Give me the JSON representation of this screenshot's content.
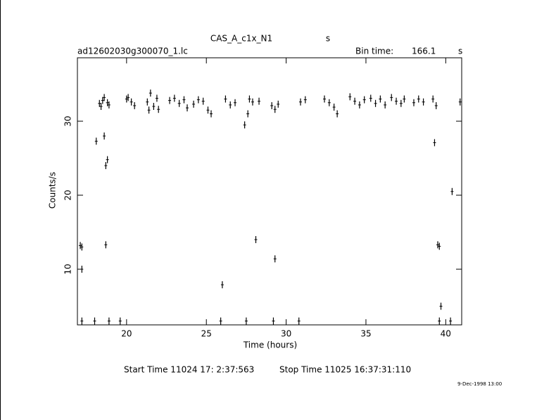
{
  "chart_data": {
    "type": "scatter",
    "title": "CAS_A_c1x_N1",
    "title_suffix": "s",
    "subtitle": "ad12602030g300070_1.lc",
    "bin_time_label": "Bin time:",
    "bin_time": "166.1",
    "bin_time_unit": "s",
    "xlabel": "Time (hours)",
    "ylabel": "Counts/s",
    "start_time": "Start Time 11024 17: 2:37:563",
    "stop_time": "Stop Time 11025 16:37:31:110",
    "date": "9-Dec-1998 13:00",
    "xlim": [
      16.92,
      41.0
    ],
    "ylim": [
      2.48,
      38.57
    ],
    "xticks": [
      20,
      25,
      30,
      35,
      40
    ],
    "yticks": [
      10,
      20,
      30
    ],
    "grid": false,
    "series": [
      {
        "color": "#000000",
        "x": [
          17.2,
          18.0,
          18.9,
          19.6,
          25.9,
          27.5,
          29.2,
          30.8,
          39.6,
          40.3,
          17.1,
          17.2,
          17.2,
          18.1,
          18.6,
          18.7,
          18.8,
          18.7,
          18.3,
          18.4,
          18.5,
          18.6,
          18.8,
          18.9,
          20.0,
          20.1,
          20.3,
          20.5,
          21.3,
          21.4,
          21.5,
          21.7,
          21.9,
          22.0,
          22.7,
          23.0,
          23.3,
          23.6,
          23.8,
          24.2,
          24.5,
          24.8,
          25.1,
          25.3,
          26.2,
          26.5,
          26.8,
          27.4,
          27.6,
          27.7,
          27.9,
          28.1,
          28.3,
          26.0,
          29.3,
          29.1,
          29.3,
          29.5,
          30.9,
          31.2,
          32.4,
          32.7,
          33.0,
          33.2,
          34.0,
          34.3,
          34.6,
          34.9,
          35.3,
          35.6,
          35.9,
          36.2,
          36.6,
          36.9,
          37.2,
          37.4,
          38.0,
          38.3,
          38.6,
          39.2,
          39.4,
          39.3,
          39.5,
          39.6,
          39.7,
          40.4,
          40.9
        ],
        "values": [
          3,
          3,
          3,
          3,
          3,
          3,
          3,
          3,
          3,
          3,
          13.2,
          13.0,
          10,
          27.3,
          28,
          24,
          24.8,
          13.3,
          32.4,
          32.0,
          32.8,
          33.2,
          32.5,
          32.2,
          33.0,
          33.2,
          32.6,
          32.1,
          32.6,
          31.5,
          33.8,
          32.0,
          33.1,
          31.6,
          32.8,
          33.1,
          32.4,
          32.9,
          31.8,
          32.3,
          32.9,
          32.7,
          31.5,
          31.0,
          33.0,
          32.2,
          32.5,
          29.5,
          31,
          33,
          32.6,
          14,
          32.7,
          7.9,
          11.4,
          32.1,
          31.6,
          32.3,
          32.6,
          32.9,
          33.0,
          32.5,
          31.9,
          31.0,
          33.3,
          32.7,
          32.2,
          32.9,
          33.1,
          32.4,
          33.0,
          32.2,
          33.2,
          32.7,
          32.4,
          33.0,
          32.5,
          33.0,
          32.6,
          33.0,
          32.1,
          27.1,
          13.3,
          13.1,
          5.0,
          20.5,
          32.6
        ]
      }
    ]
  }
}
